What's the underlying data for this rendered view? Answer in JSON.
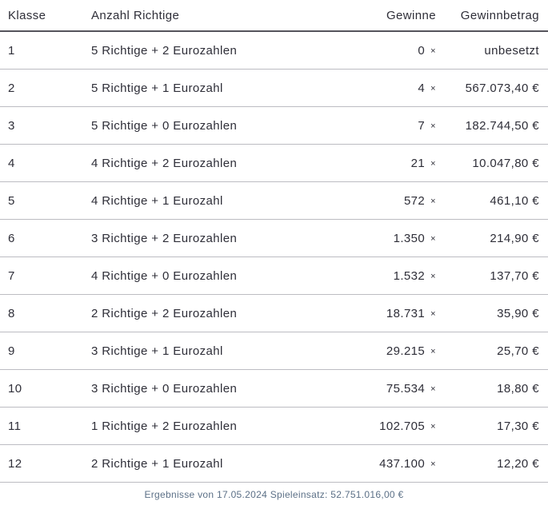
{
  "table": {
    "columns": [
      "Klasse",
      "Anzahl Richtige",
      "Gewinne",
      "Gewinnbetrag"
    ],
    "multiplier_sign": "×",
    "rows": [
      {
        "klasse": "1",
        "anzahl": "5 Richtige + 2 Eurozahlen",
        "gewinne": "0",
        "betrag": "unbesetzt"
      },
      {
        "klasse": "2",
        "anzahl": "5 Richtige + 1 Eurozahl",
        "gewinne": "4",
        "betrag": "567.073,40 €"
      },
      {
        "klasse": "3",
        "anzahl": "5 Richtige + 0 Eurozahlen",
        "gewinne": "7",
        "betrag": "182.744,50 €"
      },
      {
        "klasse": "4",
        "anzahl": "4 Richtige + 2 Eurozahlen",
        "gewinne": "21",
        "betrag": "10.047,80 €"
      },
      {
        "klasse": "5",
        "anzahl": "4 Richtige + 1 Eurozahl",
        "gewinne": "572",
        "betrag": "461,10 €"
      },
      {
        "klasse": "6",
        "anzahl": "3 Richtige + 2 Eurozahlen",
        "gewinne": "1.350",
        "betrag": "214,90 €"
      },
      {
        "klasse": "7",
        "anzahl": "4 Richtige + 0 Eurozahlen",
        "gewinne": "1.532",
        "betrag": "137,70 €"
      },
      {
        "klasse": "8",
        "anzahl": "2 Richtige + 2 Eurozahlen",
        "gewinne": "18.731",
        "betrag": "35,90 €"
      },
      {
        "klasse": "9",
        "anzahl": "3 Richtige + 1 Eurozahl",
        "gewinne": "29.215",
        "betrag": "25,70 €"
      },
      {
        "klasse": "10",
        "anzahl": "3 Richtige + 0 Eurozahlen",
        "gewinne": "75.534",
        "betrag": "18,80 €"
      },
      {
        "klasse": "11",
        "anzahl": "1 Richtige + 2 Eurozahlen",
        "gewinne": "102.705",
        "betrag": "17,30 €"
      },
      {
        "klasse": "12",
        "anzahl": "2 Richtige + 1 Eurozahl",
        "gewinne": "437.100",
        "betrag": "12,20 €"
      }
    ]
  },
  "footer": {
    "text": "Ergebnisse von 17.05.2024 Spieleinsatz: 52.751.016,00 €"
  },
  "colors": {
    "text": "#2e2e38",
    "footer_text": "#5c7087",
    "header_border": "#55545c",
    "row_border": "#bcbcc2",
    "background": "#ffffff"
  }
}
